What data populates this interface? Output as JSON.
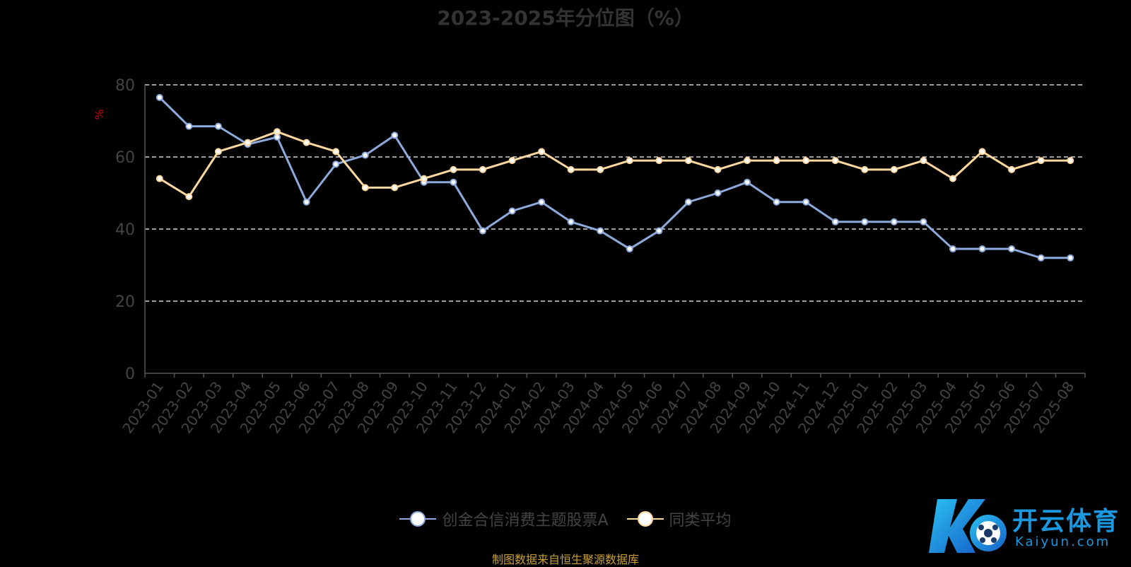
{
  "chart_data": {
    "type": "line",
    "title": "2023-2025年分位图（%）",
    "ylabel": "%",
    "xlabel": "",
    "ylim": [
      0,
      80
    ],
    "yticks": [
      0,
      20,
      40,
      60,
      80
    ],
    "grid": true,
    "legend_position": "bottom",
    "categories": [
      "2023-01",
      "2023-02",
      "2023-03",
      "2023-04",
      "2023-05",
      "2023-06",
      "2023-07",
      "2023-08",
      "2023-09",
      "2023-10",
      "2023-11",
      "2023-12",
      "2024-01",
      "2024-02",
      "2024-03",
      "2024-04",
      "2024-05",
      "2024-06",
      "2024-07",
      "2024-08",
      "2024-09",
      "2024-10",
      "2024-11",
      "2024-12",
      "2025-01",
      "2025-02",
      "2025-03",
      "2025-04",
      "2025-05",
      "2025-06",
      "2025-07",
      "2025-08"
    ],
    "series": [
      {
        "name": "创金合信消费主题股票A",
        "color": "#8eaadb",
        "values": [
          76.5,
          68.5,
          68.5,
          63.5,
          65.5,
          47.5,
          58,
          60.5,
          66,
          53,
          53,
          39.5,
          45,
          47.5,
          42,
          39.5,
          34.5,
          39.5,
          47.5,
          50,
          53,
          47.5,
          47.5,
          42,
          42,
          42,
          42,
          34.5,
          34.5,
          34.5,
          32,
          32
        ]
      },
      {
        "name": "同类平均",
        "color": "#ffd8a0",
        "values": [
          54,
          49,
          61.5,
          64,
          67,
          64,
          61.5,
          51.5,
          51.5,
          54,
          56.5,
          56.5,
          59,
          61.5,
          56.5,
          56.5,
          59,
          59,
          59,
          56.5,
          59,
          59,
          59,
          59,
          56.5,
          56.5,
          59,
          54,
          61.5,
          56.5,
          59,
          59
        ]
      }
    ]
  },
  "legend": {
    "item1": "创金合信消费主题股票A",
    "item2": "同类平均"
  },
  "source_note": "制图数据来自恒生聚源数据库",
  "watermark": {
    "brand": "开云体育",
    "sub": "Kaiyun.com"
  },
  "colors": {
    "background": "#000000",
    "axis": "#555555",
    "grid": "#ffffff",
    "tick_text": "#444444",
    "ylabel": "#cc0000"
  }
}
